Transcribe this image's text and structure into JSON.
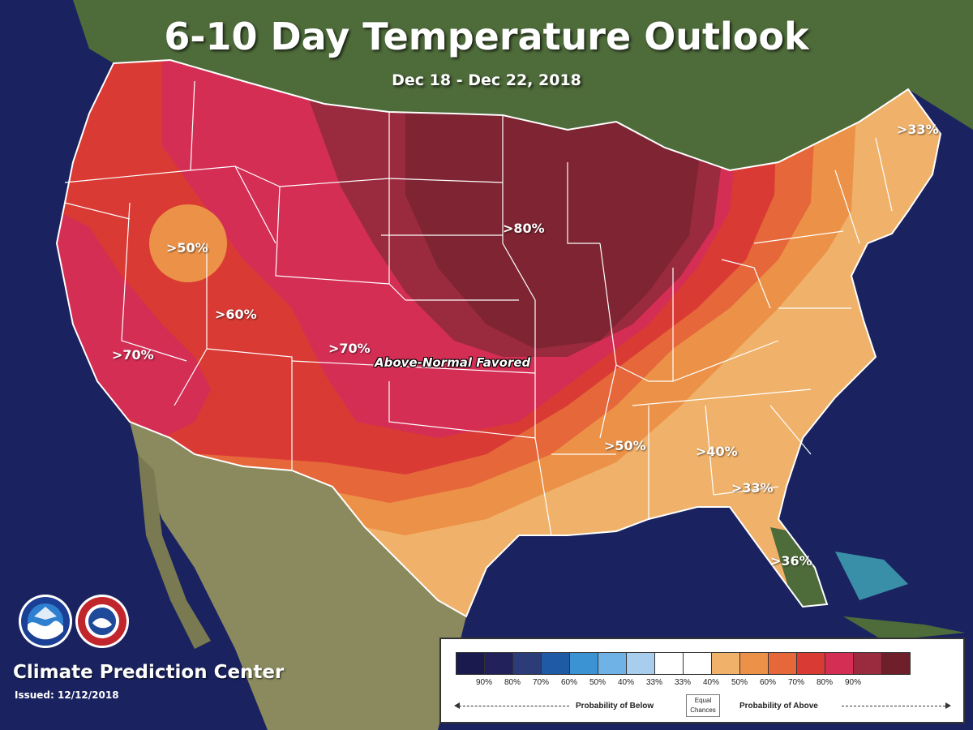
{
  "header": {
    "title": "6-10 Day Temperature Outlook",
    "date_range": "Dec 18 - Dec 22, 2018"
  },
  "map": {
    "category_label": "Above-Normal Favored",
    "region_labels": [
      ">33%",
      ">80%",
      ">50%",
      ">60%",
      ">70%",
      ">70%",
      ">50%",
      ">40%",
      ">33%",
      ">36%"
    ]
  },
  "footer": {
    "org_name": "Climate Prediction Center",
    "issued": "Issued: 12/12/2018",
    "logo_noaa_text": "NOAA",
    "logo_nws_text": "NATIONAL WEATHER SERVICE"
  },
  "legend": {
    "colors": [
      "#1a1a4e",
      "#23215c",
      "#2b3c78",
      "#1e5aa6",
      "#3c93d4",
      "#6fb2e6",
      "#a9cdec",
      "#ffffff",
      "#ffffff",
      "#f0b26a",
      "#ec9248",
      "#e5673a",
      "#d93a34",
      "#d42e55",
      "#9a2a3d",
      "#6e1f2a"
    ],
    "ticks": [
      "90%",
      "80%",
      "70%",
      "60%",
      "50%",
      "40%",
      "33%",
      "33%",
      "40%",
      "50%",
      "60%",
      "70%",
      "80%",
      "90%"
    ],
    "below_label": "Probability of Below",
    "equal_label_1": "Equal",
    "equal_label_2": "Chances",
    "above_label": "Probability of Above"
  },
  "colors": {
    "ocean": "#1a2360",
    "land_canada": "#4e6b3a",
    "land_mexico": "#8b8a5e",
    "water_lakes": "#1b2a6a"
  }
}
